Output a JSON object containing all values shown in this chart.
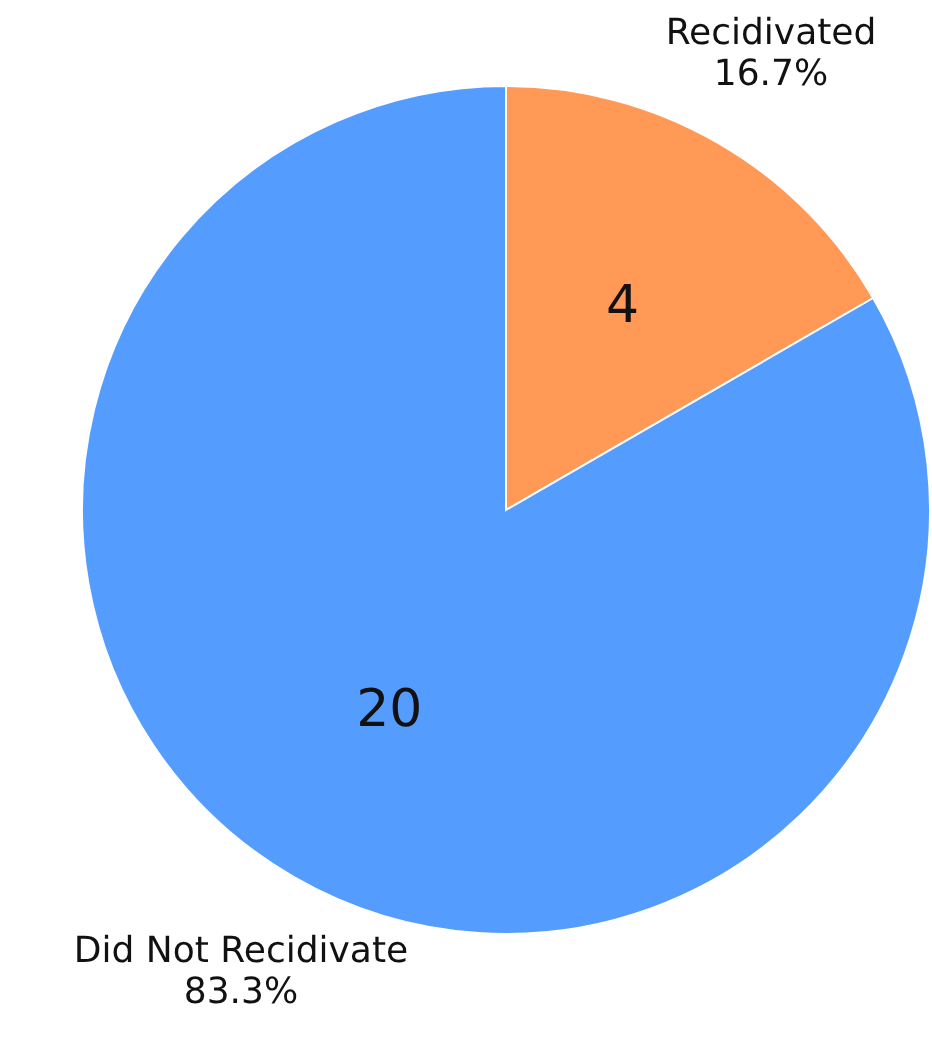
{
  "chart_data": {
    "type": "pie",
    "categories": [
      "Recidivated",
      "Did Not Recidivate"
    ],
    "values": [
      4,
      20
    ],
    "colors": [
      "#ff9955",
      "#559cff"
    ],
    "data_labels": true,
    "annotations": [
      "16.7%",
      "83.3%"
    ]
  }
}
